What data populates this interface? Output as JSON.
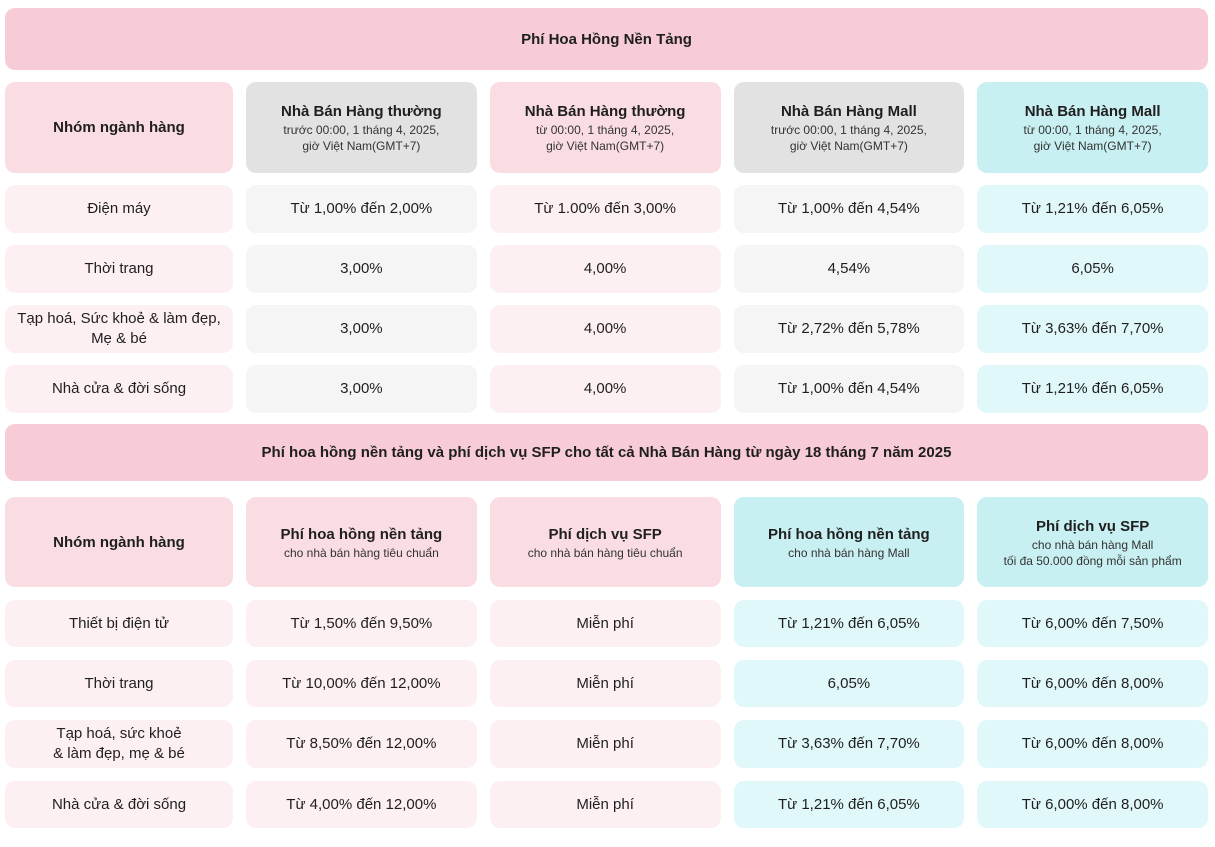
{
  "colors": {
    "banner_pink": "#f7ccd6",
    "header_pink": "#f9dde3",
    "header_gray": "#e2e2e2",
    "header_cyan": "#c8eff1",
    "cell_pink": "#fdf0f2",
    "cell_gray": "#f5f5f5",
    "cell_cyan": "#e0f8f9",
    "text": "#1f1f1f"
  },
  "banner1": {
    "title": "Phí Hoa Hồng Nền Tảng"
  },
  "table1": {
    "header": [
      {
        "title": "Nhóm ngành hàng"
      },
      {
        "title": "Nhà Bán Hàng thường",
        "sub1": "trước 00:00, 1 tháng 4, 2025,",
        "sub2": "giờ Việt Nam(GMT+7)"
      },
      {
        "title": "Nhà Bán Hàng thường",
        "sub1": "từ 00:00, 1 tháng 4, 2025,",
        "sub2": "giờ Việt Nam(GMT+7)"
      },
      {
        "title": "Nhà Bán Hàng Mall",
        "sub1": "trước 00:00, 1 tháng 4, 2025,",
        "sub2": "giờ Việt Nam(GMT+7)"
      },
      {
        "title": "Nhà Bán Hàng Mall",
        "sub1": "từ 00:00, 1 tháng 4, 2025,",
        "sub2": "giờ Việt Nam(GMT+7)"
      }
    ],
    "rows": [
      {
        "category": "Điện máy",
        "values": [
          "Từ 1,00% đến 2,00%",
          "Từ 1.00% đến 3,00%",
          "Từ 1,00% đến 4,54%",
          "Từ 1,21% đến 6,05%"
        ]
      },
      {
        "category": "Thời trang",
        "values": [
          "3,00%",
          "4,00%",
          "4,54%",
          "6,05%"
        ]
      },
      {
        "category": "Tạp hoá, Sức khoẻ & làm đẹp,\nMẹ & bé",
        "values": [
          "3,00%",
          "4,00%",
          "Từ 2,72% đến 5,78%",
          "Từ 3,63% đến 7,70%"
        ]
      },
      {
        "category": "Nhà cửa & đời sống",
        "values": [
          "3,00%",
          "4,00%",
          "Từ 1,00% đến 4,54%",
          "Từ 1,21% đến 6,05%"
        ]
      }
    ]
  },
  "banner2": {
    "title": "Phí hoa hồng nền tảng và phí dịch vụ SFP cho tất cả Nhà Bán Hàng từ ngày 18 tháng 7 năm 2025"
  },
  "table2": {
    "header": [
      {
        "title": "Nhóm ngành hàng"
      },
      {
        "title": "Phí hoa hồng nền tảng",
        "sub1": "cho nhà bán hàng tiêu chuẩn"
      },
      {
        "title": "Phí dịch vụ SFP",
        "sub1": "cho nhà bán hàng tiêu chuẩn"
      },
      {
        "title": "Phí hoa hồng nền tảng",
        "sub1": "cho nhà bán hàng Mall"
      },
      {
        "title": "Phí dịch vụ SFP",
        "sub1": "cho nhà bán hàng Mall",
        "sub2": "tối đa 50.000 đồng mỗi sản phẩm"
      }
    ],
    "rows": [
      {
        "category": "Thiết bị điện tử",
        "values": [
          "Từ 1,50% đến 9,50%",
          "Miễn phí",
          "Từ 1,21% đến 6,05%",
          "Từ 6,00% đến 7,50%"
        ]
      },
      {
        "category": "Thời trang",
        "values": [
          "Từ 10,00% đến 12,00%",
          "Miễn phí",
          "6,05%",
          "Từ 6,00% đến 8,00%"
        ]
      },
      {
        "category": "Tạp hoá, sức khoẻ\n& làm đẹp, mẹ & bé",
        "values": [
          "Từ 8,50% đến 12,00%",
          "Miễn phí",
          "Từ 3,63% đến 7,70%",
          "Từ 6,00% đến 8,00%"
        ]
      },
      {
        "category": "Nhà cửa & đời sống",
        "values": [
          "Từ 4,00% đến 12,00%",
          "Miễn phí",
          "Từ 1,21% đến 6,05%",
          "Từ 6,00% đến 8,00%"
        ]
      }
    ]
  }
}
